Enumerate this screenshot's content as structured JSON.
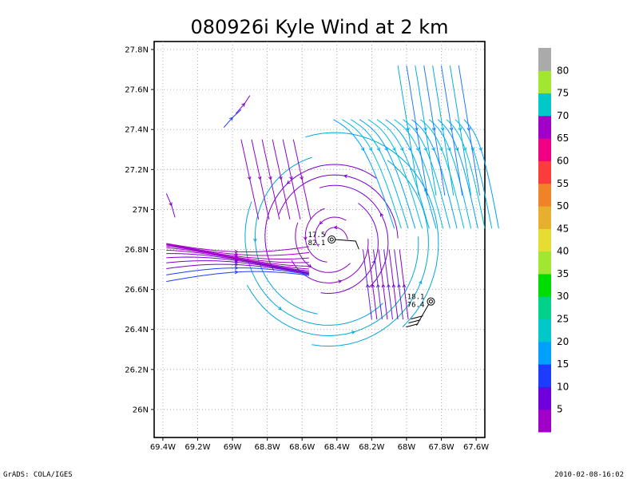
{
  "chart_data": {
    "type": "streamline",
    "title": "080926i Kyle Wind at 2 km",
    "xlabel": "",
    "ylabel": "",
    "xlim": [
      -69.45,
      -67.55
    ],
    "ylim": [
      25.86,
      27.84
    ],
    "grid": true,
    "x_ticks": [
      {
        "value": -69.4,
        "label": "69.4W"
      },
      {
        "value": -69.2,
        "label": "69.2W"
      },
      {
        "value": -69.0,
        "label": "69W"
      },
      {
        "value": -68.8,
        "label": "68.8W"
      },
      {
        "value": -68.6,
        "label": "68.6W"
      },
      {
        "value": -68.4,
        "label": "68.4W"
      },
      {
        "value": -68.2,
        "label": "68.2W"
      },
      {
        "value": -68.0,
        "label": "68W"
      },
      {
        "value": -67.8,
        "label": "67.8W"
      },
      {
        "value": -67.6,
        "label": "67.6W"
      }
    ],
    "y_ticks": [
      {
        "value": 26.0,
        "label": "26N"
      },
      {
        "value": 26.2,
        "label": "26.2N"
      },
      {
        "value": 26.4,
        "label": "26.4N"
      },
      {
        "value": 26.6,
        "label": "26.6N"
      },
      {
        "value": 26.8,
        "label": "26.8N"
      },
      {
        "value": 27.0,
        "label": "27N"
      },
      {
        "value": 27.2,
        "label": "27.2N"
      },
      {
        "value": 27.4,
        "label": "27.4N"
      },
      {
        "value": 27.6,
        "label": "27.6N"
      },
      {
        "value": 27.8,
        "label": "27.8N"
      }
    ],
    "colorbar": {
      "placement": "right",
      "labels": [
        "5",
        "10",
        "15",
        "20",
        "25",
        "30",
        "35",
        "40",
        "45",
        "50",
        "55",
        "60",
        "65",
        "70",
        "75",
        "80"
      ],
      "colors": [
        "#a000c8",
        "#6e00dc",
        "#1e3cff",
        "#00a0ff",
        "#00c8c8",
        "#00d28c",
        "#00dc00",
        "#a0e632",
        "#e6dc32",
        "#e6af2d",
        "#f08228",
        "#fa3c3c",
        "#f00082",
        "#a000c8",
        "#00c8c8",
        "#a0e632",
        "#aaaaaa"
      ]
    },
    "storm_markers": [
      {
        "lon": -68.43,
        "lat": 26.85,
        "label1": "17.5",
        "label2": "82.1"
      },
      {
        "lon": -67.86,
        "lat": 26.54,
        "label1": "18.1",
        "label2": "76.4"
      }
    ],
    "streamline_regions": [
      {
        "name": "cyclone-core",
        "center_lon": -68.45,
        "center_lat": 26.86,
        "speed_range_kt": [
          5,
          25
        ]
      },
      {
        "name": "northeast-band",
        "lon_range": [
          -68.4,
          -67.6
        ],
        "lat_range": [
          26.9,
          27.75
        ],
        "speed_range_kt": [
          15,
          25
        ]
      },
      {
        "name": "western-flow",
        "lon_range": [
          -69.4,
          -68.5
        ],
        "lat_range": [
          26.6,
          26.85
        ],
        "speed_range_kt": [
          5,
          15
        ]
      }
    ]
  },
  "footer": {
    "left": "GrADS: COLA/IGES",
    "right": "2010-02-08-16:02"
  }
}
